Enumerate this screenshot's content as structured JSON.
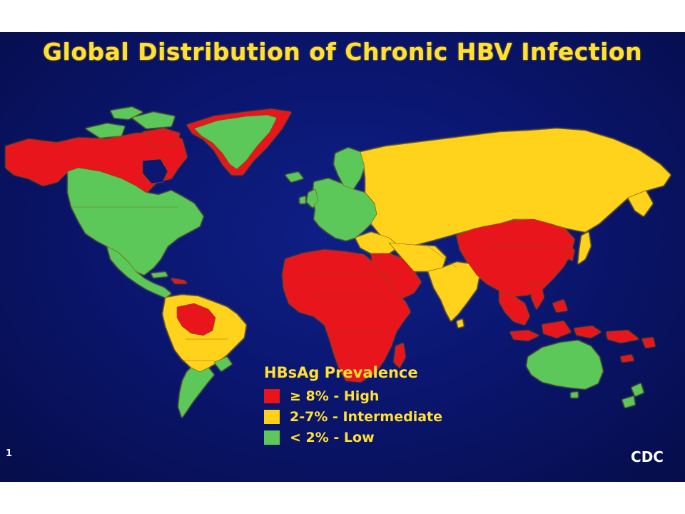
{
  "title": "Global Distribution of Chronic HBV Infection",
  "legend": {
    "title": "HBsAg Prevalence",
    "items": [
      {
        "label": "≥ 8% - High",
        "color": "#e8141c"
      },
      {
        "label": "2-7% - Intermediate",
        "color": "#ffd21a"
      },
      {
        "label": "< 2% - Low",
        "color": "#5cc85a"
      }
    ]
  },
  "slide_number": "1",
  "credit": "CDC",
  "colors": {
    "background": "#0a1670",
    "title_text": "#ffe033",
    "high": "#e8141c",
    "intermediate": "#ffd21a",
    "low": "#5cc85a"
  },
  "regions": {
    "north_america": "high-arctic, low-mainland",
    "greenland": "low-center, high-coast",
    "south_america": "intermediate, high-amazon, low-south",
    "europe": "low",
    "russia_central_asia": "intermediate",
    "africa": "high",
    "middle_east": "high",
    "china_east_asia": "high",
    "south_asia": "intermediate",
    "southeast_asia": "high",
    "australia": "low",
    "new_zealand": "low"
  }
}
